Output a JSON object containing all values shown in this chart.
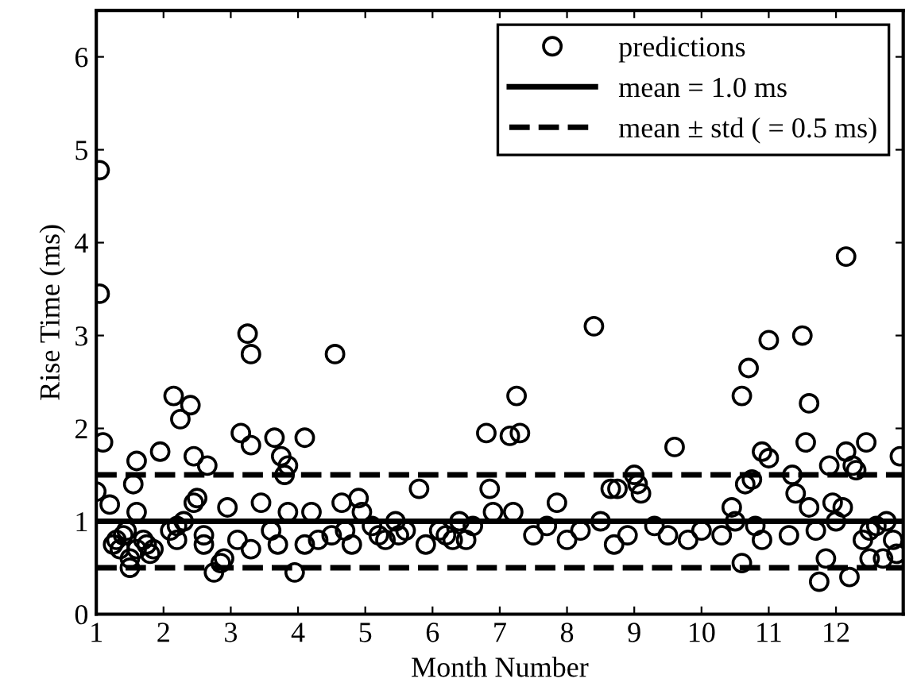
{
  "chart_data": {
    "type": "scatter",
    "xlabel": "Month Number",
    "ylabel": "Rise Time (ms)",
    "xlim": [
      1,
      13
    ],
    "xticks": [
      1,
      2,
      3,
      4,
      5,
      6,
      7,
      8,
      9,
      10,
      11,
      12
    ],
    "ylim": [
      0,
      6.5
    ],
    "yticks": [
      0,
      1,
      2,
      3,
      4,
      5,
      6
    ],
    "grid": false,
    "legend": "top right",
    "marker": "circle",
    "series": [
      {
        "name": "predictions",
        "color": "#000000",
        "x": [
          1.05,
          1.05,
          1.1,
          1.0,
          1.2,
          1.25,
          1.3,
          1.35,
          1.4,
          1.45,
          1.5,
          1.5,
          1.55,
          1.6,
          1.6,
          1.6,
          1.7,
          1.75,
          1.8,
          1.85,
          1.95,
          2.15,
          2.25,
          2.4,
          2.45,
          2.65,
          2.45,
          2.5,
          2.1,
          2.2,
          2.3,
          2.2,
          2.6,
          2.75,
          2.85,
          2.9,
          2.95,
          2.6,
          3.25,
          3.3,
          3.15,
          3.3,
          3.65,
          3.75,
          3.85,
          3.8,
          3.45,
          3.3,
          3.1,
          3.85,
          3.95,
          3.6,
          3.7,
          4.1,
          4.2,
          4.55,
          4.1,
          4.3,
          4.5,
          4.65,
          4.8,
          4.9,
          4.95,
          4.7,
          5.1,
          5.2,
          5.3,
          5.45,
          5.6,
          5.8,
          5.9,
          5.5,
          6.1,
          6.2,
          6.4,
          6.5,
          6.9,
          6.85,
          6.8,
          6.6,
          6.3,
          7.25,
          7.15,
          7.3,
          7.2,
          7.5,
          7.7,
          7.85,
          8.0,
          8.4,
          8.2,
          8.65,
          8.75,
          8.5,
          8.9,
          8.7,
          9.0,
          9.05,
          9.1,
          9.6,
          9.3,
          9.5,
          9.8,
          10.0,
          10.3,
          10.45,
          10.6,
          10.6,
          10.7,
          10.65,
          10.75,
          10.8,
          10.5,
          10.9,
          11.0,
          10.9,
          11.0,
          11.35,
          11.4,
          11.5,
          11.6,
          11.55,
          11.6,
          11.7,
          11.75,
          11.85,
          11.3,
          11.9,
          11.95,
          12.0,
          12.15,
          12.15,
          12.25,
          12.45,
          12.3,
          12.1,
          12.2,
          12.4,
          12.5,
          12.6,
          12.75,
          12.95,
          12.9,
          12.85,
          12.7,
          12.5
        ],
        "values": [
          4.78,
          3.45,
          1.85,
          1.32,
          1.18,
          0.75,
          0.8,
          0.7,
          0.85,
          0.9,
          0.6,
          0.5,
          1.4,
          1.65,
          1.1,
          0.7,
          0.8,
          0.75,
          0.65,
          0.7,
          1.75,
          2.35,
          2.1,
          2.25,
          1.7,
          1.6,
          1.2,
          1.25,
          0.9,
          0.95,
          1.0,
          0.8,
          0.75,
          0.45,
          0.55,
          0.6,
          1.15,
          0.85,
          3.02,
          2.8,
          1.95,
          1.82,
          1.9,
          1.7,
          1.6,
          1.5,
          1.2,
          0.7,
          0.8,
          1.1,
          0.45,
          0.9,
          0.75,
          1.9,
          1.1,
          2.8,
          0.75,
          0.8,
          0.85,
          1.2,
          0.75,
          1.25,
          1.1,
          0.9,
          0.95,
          0.85,
          0.8,
          1.0,
          0.9,
          1.35,
          0.75,
          0.85,
          0.9,
          0.85,
          1.0,
          0.8,
          1.1,
          1.35,
          1.95,
          0.95,
          0.8,
          2.35,
          1.92,
          1.95,
          1.1,
          0.85,
          0.95,
          1.2,
          0.8,
          3.1,
          0.9,
          1.35,
          1.35,
          1.0,
          0.85,
          0.75,
          1.5,
          1.4,
          1.3,
          1.8,
          0.95,
          0.85,
          0.8,
          0.9,
          0.85,
          1.15,
          0.55,
          2.35,
          2.65,
          1.4,
          1.45,
          0.95,
          1.0,
          0.8,
          2.95,
          1.75,
          1.68,
          1.5,
          1.3,
          3.0,
          2.27,
          1.85,
          1.15,
          0.9,
          0.35,
          0.6,
          0.85,
          1.6,
          1.2,
          1.0,
          3.85,
          1.75,
          1.6,
          1.85,
          1.55,
          1.15,
          0.4,
          0.8,
          0.6,
          0.95,
          1.0,
          1.7,
          0.65,
          0.8,
          0.6,
          0.9
        ]
      }
    ],
    "ref_lines": [
      {
        "axis": "y",
        "value": 1.0,
        "label": "mean = 1.0 ms",
        "line_style": "solid",
        "color": "#000000"
      },
      {
        "axis": "y",
        "value": 0.5,
        "label": "mean ± std ( = 0.5 ms)",
        "line_style": "dashed",
        "color": "#000000"
      },
      {
        "axis": "y",
        "value": 1.5,
        "label": null,
        "line_style": "dashed",
        "color": "#000000"
      }
    ]
  }
}
